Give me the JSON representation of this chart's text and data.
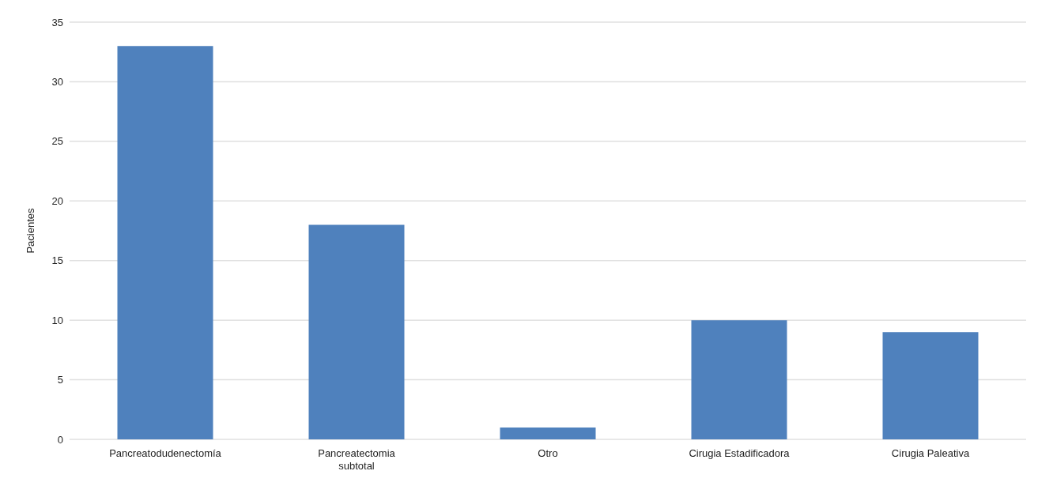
{
  "chart_data": {
    "type": "bar",
    "ylabel": "Pacientes",
    "categories": [
      "Pancreatodudenectomía",
      "Pancreatectomia subtotal",
      "Otro",
      "Cirugia Estadificadora",
      "Cirugia Paleativa"
    ],
    "values": [
      33,
      18,
      1,
      10,
      9
    ],
    "color": "#4f81bd",
    "ylim": [
      0,
      35
    ],
    "yticks": [
      0,
      5,
      10,
      15,
      20,
      25,
      30,
      35
    ],
    "grid": "y",
    "legend": false
  }
}
